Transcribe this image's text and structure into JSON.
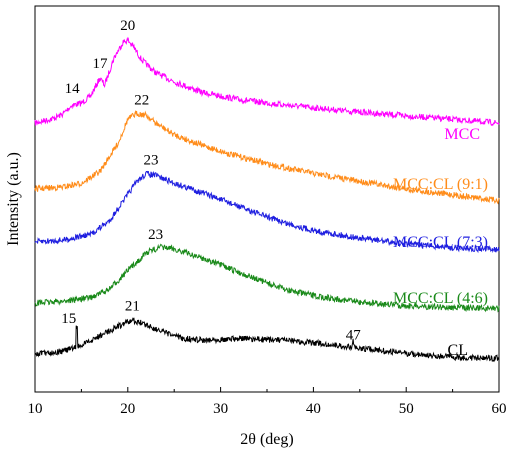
{
  "chart_data": {
    "type": "line",
    "xlabel": "2θ (deg)",
    "ylabel": "Intensity (a.u.)",
    "xlim": [
      10,
      60
    ],
    "xticks": [
      "10",
      "20",
      "30",
      "40",
      "50",
      "60"
    ],
    "yticks_shown": false,
    "legend_placement": "inline labels at right end of each curve",
    "series": [
      {
        "name": "MCC",
        "color": "#ff00ff",
        "points": [
          [
            10,
            0.0
          ],
          [
            12,
            0.05
          ],
          [
            13,
            0.1
          ],
          [
            14,
            0.2
          ],
          [
            15,
            0.22
          ],
          [
            16,
            0.3
          ],
          [
            17,
            0.5
          ],
          [
            17.5,
            0.42
          ],
          [
            18.5,
            0.72
          ],
          [
            19.5,
            0.9
          ],
          [
            20,
            0.92
          ],
          [
            20.6,
            0.85
          ],
          [
            21.5,
            0.7
          ],
          [
            23,
            0.56
          ],
          [
            25,
            0.46
          ],
          [
            28,
            0.34
          ],
          [
            32,
            0.26
          ],
          [
            36,
            0.21
          ],
          [
            40,
            0.17
          ],
          [
            45,
            0.12
          ],
          [
            50,
            0.08
          ],
          [
            55,
            0.04
          ],
          [
            60,
            0.0
          ]
        ],
        "peak_labels": [
          {
            "text": "14",
            "x": 14
          },
          {
            "text": "17",
            "x": 17
          },
          {
            "text": "20",
            "x": 20
          }
        ]
      },
      {
        "name": "MCC:CL (9:1)",
        "color": "#ff8c1a",
        "points": [
          [
            10,
            0.0
          ],
          [
            13,
            0.02
          ],
          [
            15,
            0.06
          ],
          [
            17,
            0.18
          ],
          [
            19,
            0.48
          ],
          [
            20,
            0.72
          ],
          [
            21,
            0.78
          ],
          [
            22,
            0.76
          ],
          [
            23,
            0.68
          ],
          [
            25,
            0.56
          ],
          [
            28,
            0.45
          ],
          [
            31,
            0.36
          ],
          [
            35,
            0.26
          ],
          [
            40,
            0.16
          ],
          [
            45,
            0.08
          ],
          [
            50,
            0.0
          ],
          [
            55,
            -0.06
          ],
          [
            60,
            -0.12
          ]
        ],
        "peak_labels": [
          {
            "text": "22",
            "x": 21.5
          }
        ]
      },
      {
        "name": "MCC:CL (7:3)",
        "color": "#1f1fe0",
        "points": [
          [
            10,
            0.0
          ],
          [
            13,
            0.02
          ],
          [
            16,
            0.08
          ],
          [
            18,
            0.22
          ],
          [
            20,
            0.5
          ],
          [
            21,
            0.64
          ],
          [
            22,
            0.72
          ],
          [
            23,
            0.7
          ],
          [
            25,
            0.62
          ],
          [
            28,
            0.52
          ],
          [
            31,
            0.41
          ],
          [
            34,
            0.3
          ],
          [
            37,
            0.2
          ],
          [
            40,
            0.12
          ],
          [
            45,
            0.04
          ],
          [
            50,
            -0.02
          ],
          [
            55,
            -0.06
          ],
          [
            60,
            -0.08
          ]
        ],
        "peak_labels": [
          {
            "text": "23",
            "x": 22.5
          }
        ]
      },
      {
        "name": "MCC:CL (4:6)",
        "color": "#1a8a1a",
        "points": [
          [
            10,
            0.0
          ],
          [
            13,
            0.02
          ],
          [
            16,
            0.06
          ],
          [
            18,
            0.15
          ],
          [
            20,
            0.36
          ],
          [
            22,
            0.56
          ],
          [
            23.5,
            0.62
          ],
          [
            25,
            0.6
          ],
          [
            28,
            0.5
          ],
          [
            31,
            0.38
          ],
          [
            34,
            0.26
          ],
          [
            37,
            0.15
          ],
          [
            40,
            0.08
          ],
          [
            45,
            0.01
          ],
          [
            50,
            -0.03
          ],
          [
            55,
            -0.05
          ],
          [
            60,
            -0.06
          ]
        ],
        "peak_labels": [
          {
            "text": "23",
            "x": 23
          }
        ]
      },
      {
        "name": "CL",
        "color": "#000000",
        "points": [
          [
            10,
            0.0
          ],
          [
            13,
            0.04
          ],
          [
            15,
            0.12
          ],
          [
            17,
            0.26
          ],
          [
            19,
            0.4
          ],
          [
            20.5,
            0.48
          ],
          [
            22,
            0.42
          ],
          [
            24,
            0.3
          ],
          [
            26,
            0.22
          ],
          [
            28,
            0.2
          ],
          [
            32,
            0.22
          ],
          [
            36,
            0.2
          ],
          [
            40,
            0.16
          ],
          [
            44,
            0.1
          ],
          [
            48,
            0.04
          ],
          [
            52,
            -0.02
          ],
          [
            56,
            -0.05
          ],
          [
            60,
            -0.06
          ]
        ],
        "peak_labels": [
          {
            "text": "15",
            "x": 14.5
          },
          {
            "text": "21",
            "x": 20.5
          },
          {
            "text": "47",
            "x": 44.3
          }
        ]
      }
    ]
  }
}
